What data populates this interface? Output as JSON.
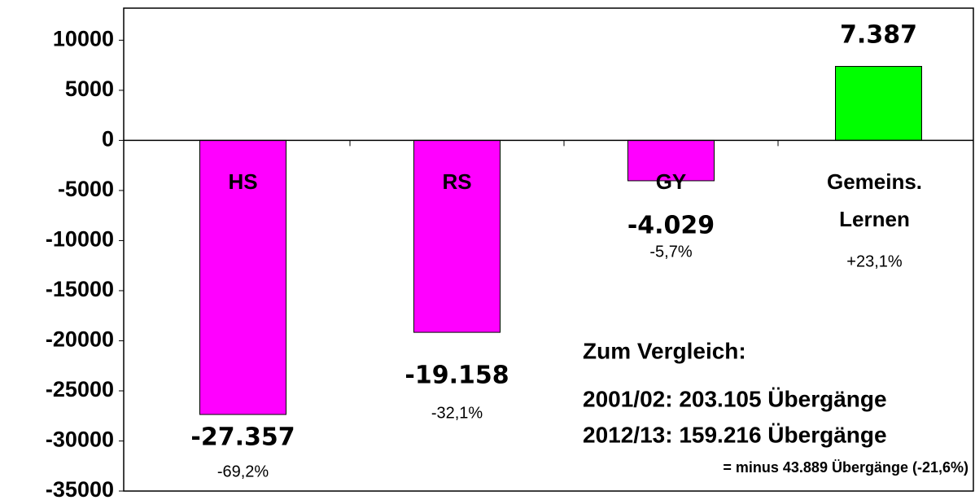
{
  "chart_data": {
    "type": "bar",
    "categories": [
      "HS",
      "RS",
      "GY",
      "Gemeins. Lernen"
    ],
    "values": [
      -27357,
      -19158,
      -4029,
      7387
    ],
    "value_labels": [
      "-27.357",
      "-19.158",
      "-4.029",
      "7.387"
    ],
    "percent_labels": [
      "-69,2%",
      "-32,1%",
      "-5,7%",
      "+23,1%"
    ],
    "colors": [
      "#ff00ff",
      "#ff00ff",
      "#ff00ff",
      "#00ff00"
    ],
    "ylim": [
      -35000,
      13200
    ],
    "yticks": [
      10000,
      5000,
      0,
      -5000,
      -10000,
      -15000,
      -20000,
      -25000,
      -30000,
      -35000
    ],
    "annotations": [
      "Zum Vergleich:",
      "2001/02:  203.105 Übergänge",
      "2012/13:  159.216 Übergänge",
      "= minus 43.889 Übergänge (-21,6%)"
    ]
  }
}
